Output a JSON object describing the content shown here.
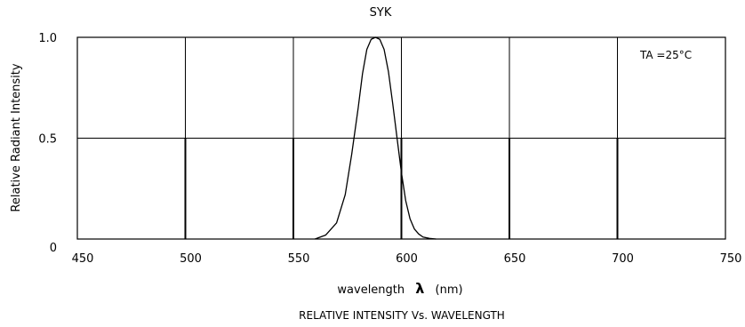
{
  "chart_data": {
    "type": "line",
    "title": "SYK",
    "subtitle": "RELATIVE INTENSITY Vs. WAVELENGTH",
    "xlabel": "wavelength",
    "xlabel_symbol": "λ",
    "xlabel_unit": "(nm)",
    "ylabel": "Relative Radiant Intensity",
    "annotation": "TA =25°C",
    "xlim": [
      450,
      750
    ],
    "ylim": [
      0,
      1.0
    ],
    "x_ticks": [
      "450",
      "500",
      "550",
      "600",
      "650",
      "700",
      "750"
    ],
    "y_ticks": [
      "0",
      "0.5",
      "1.0"
    ],
    "grid": true,
    "series": [
      {
        "x": [
          560,
          565,
          570,
          574,
          577,
          580,
          582,
          584,
          586,
          588,
          590,
          592,
          594,
          596,
          598,
          600,
          602,
          604,
          606,
          608,
          610,
          613,
          616
        ],
        "values": [
          0.0,
          0.02,
          0.08,
          0.22,
          0.42,
          0.65,
          0.82,
          0.94,
          0.99,
          1.0,
          0.99,
          0.94,
          0.83,
          0.67,
          0.5,
          0.33,
          0.19,
          0.1,
          0.05,
          0.025,
          0.01,
          0.003,
          0.0
        ]
      }
    ]
  }
}
